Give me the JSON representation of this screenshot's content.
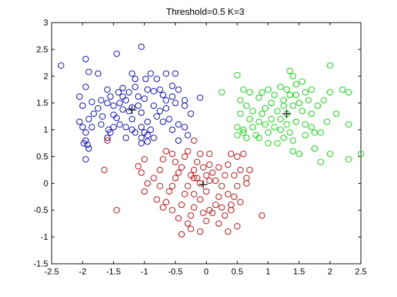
{
  "chart_data": {
    "type": "scatter",
    "title": "Threshold=0.5 K=3",
    "xlabel": "",
    "ylabel": "",
    "xlim": [
      -2.5,
      2.5
    ],
    "ylim": [
      -1.5,
      3
    ],
    "x_ticks": [
      "-2.5",
      "-2",
      "-1.5",
      "-1",
      "-0.5",
      "0",
      "0.5",
      "1",
      "1.5",
      "2",
      "2.5"
    ],
    "y_ticks": [
      "-1.5",
      "-1",
      "-0.5",
      "0",
      "0.5",
      "1",
      "1.5",
      "2",
      "2.5",
      "3"
    ],
    "grid": false,
    "marker": "circle-open",
    "series": [
      {
        "color": "#0000cc",
        "points": [
          [
            -2.35,
            2.2
          ],
          [
            -1.95,
            2.32
          ],
          [
            -1.9,
            2.08
          ],
          [
            -1.75,
            2.05
          ],
          [
            -1.45,
            2.42
          ],
          [
            -1.05,
            2.55
          ],
          [
            -1.95,
            1.8
          ],
          [
            -2.05,
            1.62
          ],
          [
            -2.0,
            1.45
          ],
          [
            -1.85,
            1.52
          ],
          [
            -1.7,
            1.55
          ],
          [
            -1.55,
            1.62
          ],
          [
            -1.42,
            1.7
          ],
          [
            -1.35,
            1.62
          ],
          [
            -1.3,
            1.55
          ],
          [
            -1.5,
            1.45
          ],
          [
            -1.6,
            1.5
          ],
          [
            -1.75,
            1.4
          ],
          [
            -1.68,
            1.25
          ],
          [
            -1.82,
            1.3
          ],
          [
            -1.9,
            1.2
          ],
          [
            -2.05,
            1.15
          ],
          [
            -2.0,
            1.05
          ],
          [
            -1.85,
            1.05
          ],
          [
            -1.95,
            0.8
          ],
          [
            -1.95,
            0.95
          ],
          [
            -1.98,
            0.75
          ],
          [
            -1.92,
            0.72
          ],
          [
            -1.9,
            0.65
          ],
          [
            -1.95,
            0.45
          ],
          [
            -1.5,
            1.28
          ],
          [
            -1.35,
            1.38
          ],
          [
            -1.25,
            1.35
          ],
          [
            -1.2,
            1.42
          ],
          [
            -1.1,
            1.45
          ],
          [
            -1.05,
            1.32
          ],
          [
            -1.45,
            1.22
          ],
          [
            -1.4,
            1.1
          ],
          [
            -1.5,
            1.05
          ],
          [
            -1.55,
            0.95
          ],
          [
            -1.58,
            1.0
          ],
          [
            -1.3,
            1.05
          ],
          [
            -1.2,
            1.0
          ],
          [
            -1.15,
            0.95
          ],
          [
            -1.05,
            1.05
          ],
          [
            -1.0,
            0.95
          ],
          [
            -0.95,
            1.15
          ],
          [
            -0.9,
            1.0
          ],
          [
            -0.95,
            0.9
          ],
          [
            -0.85,
            0.85
          ],
          [
            -1.05,
            0.85
          ],
          [
            -1.3,
            0.85
          ],
          [
            -1.7,
            1.1
          ],
          [
            -1.6,
            0.85
          ],
          [
            -1.4,
            1.5
          ],
          [
            -1.25,
            1.7
          ],
          [
            -1.15,
            1.8
          ],
          [
            -1.1,
            1.62
          ],
          [
            -1.0,
            1.58
          ],
          [
            -0.95,
            1.75
          ],
          [
            -0.85,
            1.72
          ],
          [
            -0.75,
            1.75
          ],
          [
            -0.7,
            1.65
          ],
          [
            -0.65,
            1.55
          ],
          [
            -0.55,
            1.62
          ],
          [
            -0.5,
            1.5
          ],
          [
            -0.65,
            1.4
          ],
          [
            -0.75,
            1.35
          ],
          [
            -0.85,
            1.45
          ],
          [
            -0.6,
            1.2
          ],
          [
            -0.7,
            1.15
          ],
          [
            -0.55,
            1.0
          ],
          [
            -0.45,
            1.1
          ],
          [
            -0.35,
            1.05
          ],
          [
            -0.45,
            0.8
          ],
          [
            -0.3,
            0.9
          ],
          [
            -0.25,
            1.3
          ],
          [
            -0.35,
            1.45
          ],
          [
            -1.2,
            2.05
          ],
          [
            -1.15,
            1.95
          ],
          [
            -0.98,
            1.95
          ],
          [
            -0.9,
            2.05
          ],
          [
            -0.8,
            1.95
          ],
          [
            -0.65,
            2.05
          ],
          [
            -0.5,
            2.05
          ],
          [
            -0.55,
            1.82
          ],
          [
            -0.45,
            1.75
          ],
          [
            -0.35,
            1.55
          ],
          [
            -0.1,
            1.6
          ],
          [
            -1.35,
            1.78
          ],
          [
            -1.6,
            1.75
          ],
          [
            -1.2,
            1.2
          ],
          [
            -0.8,
            1.25
          ],
          [
            -1.05,
            0.75
          ],
          [
            -0.95,
            0.78
          ]
        ]
      },
      {
        "color": "#cc0000",
        "points": [
          [
            -1.65,
            0.25
          ],
          [
            -1.6,
            0.8
          ],
          [
            -1.45,
            -0.5
          ],
          [
            -1.1,
            0.32
          ],
          [
            -1.0,
            0.45
          ],
          [
            -1.05,
            0.2
          ],
          [
            -0.95,
            0.0
          ],
          [
            -1.0,
            -0.15
          ],
          [
            -0.85,
            0.1
          ],
          [
            -0.75,
            -0.05
          ],
          [
            -0.75,
            0.25
          ],
          [
            -0.7,
            0.45
          ],
          [
            -0.65,
            0.6
          ],
          [
            -0.55,
            0.55
          ],
          [
            -0.5,
            0.4
          ],
          [
            -0.45,
            0.2
          ],
          [
            -0.4,
            0.3
          ],
          [
            -0.5,
            0.1
          ],
          [
            -0.55,
            -0.05
          ],
          [
            -0.6,
            -0.15
          ],
          [
            -0.65,
            -0.35
          ],
          [
            -0.55,
            -0.5
          ],
          [
            -0.4,
            -0.4
          ],
          [
            -0.35,
            -0.2
          ],
          [
            -0.3,
            -0.05
          ],
          [
            -0.25,
            0.15
          ],
          [
            -0.2,
            0.25
          ],
          [
            -0.15,
            0.4
          ],
          [
            -0.1,
            0.55
          ],
          [
            -0.05,
            0.3
          ],
          [
            0.0,
            0.15
          ],
          [
            0.05,
            0.05
          ],
          [
            0.0,
            -0.15
          ],
          [
            -0.1,
            -0.3
          ],
          [
            -0.2,
            -0.45
          ],
          [
            -0.25,
            -0.6
          ],
          [
            -0.3,
            -0.75
          ],
          [
            -0.25,
            -0.85
          ],
          [
            -0.4,
            -0.95
          ],
          [
            -0.1,
            -0.9
          ],
          [
            0.0,
            -0.7
          ],
          [
            0.05,
            -0.5
          ],
          [
            0.15,
            -0.4
          ],
          [
            0.2,
            -0.25
          ],
          [
            0.25,
            -0.05
          ],
          [
            0.3,
            0.15
          ],
          [
            0.35,
            0.35
          ],
          [
            0.1,
            0.2
          ],
          [
            0.15,
            0.05
          ],
          [
            0.2,
            0.3
          ],
          [
            0.4,
            0.55
          ],
          [
            0.5,
            0.5
          ],
          [
            0.6,
            0.55
          ],
          [
            0.45,
            0.15
          ],
          [
            0.55,
            0.25
          ],
          [
            0.7,
            0.25
          ],
          [
            0.65,
            0.1
          ],
          [
            0.5,
            -0.05
          ],
          [
            0.35,
            -0.2
          ],
          [
            0.4,
            -0.4
          ],
          [
            0.3,
            -0.6
          ],
          [
            0.2,
            -0.75
          ],
          [
            0.35,
            -0.9
          ],
          [
            0.5,
            -0.8
          ],
          [
            0.4,
            -0.5
          ],
          [
            0.55,
            -0.35
          ],
          [
            0.65,
            0.0
          ],
          [
            0.9,
            -0.6
          ],
          [
            -0.2,
            0.8
          ],
          [
            -0.3,
            0.6
          ],
          [
            -0.8,
            -0.3
          ],
          [
            -0.7,
            -0.45
          ],
          [
            -0.2,
            0.1
          ],
          [
            -0.1,
            0.0
          ],
          [
            -0.2,
            -0.2
          ],
          [
            -0.15,
            0.1
          ],
          [
            0.05,
            0.35
          ],
          [
            -0.35,
            0.5
          ],
          [
            -0.05,
            -0.55
          ],
          [
            0.1,
            -0.55
          ],
          [
            0.05,
            0.55
          ],
          [
            -0.45,
            -0.65
          ],
          [
            0.25,
            -0.45
          ],
          [
            0.45,
            -0.25
          ]
        ]
      },
      {
        "color": "#00dd00",
        "points": [
          [
            0.25,
            1.7
          ],
          [
            0.5,
            2.02
          ],
          [
            0.6,
            1.75
          ],
          [
            0.7,
            1.7
          ],
          [
            0.55,
            1.55
          ],
          [
            0.65,
            1.45
          ],
          [
            0.55,
            1.3
          ],
          [
            0.7,
            1.2
          ],
          [
            0.85,
            1.6
          ],
          [
            0.9,
            1.7
          ],
          [
            1.0,
            1.75
          ],
          [
            1.1,
            1.65
          ],
          [
            1.2,
            1.8
          ],
          [
            1.3,
            1.75
          ],
          [
            1.35,
            1.65
          ],
          [
            1.4,
            2.0
          ],
          [
            1.45,
            1.85
          ],
          [
            1.55,
            1.9
          ],
          [
            1.6,
            1.7
          ],
          [
            1.7,
            1.75
          ],
          [
            1.65,
            1.55
          ],
          [
            1.5,
            1.5
          ],
          [
            1.4,
            1.45
          ],
          [
            1.25,
            1.55
          ],
          [
            1.05,
            1.5
          ],
          [
            0.95,
            1.4
          ],
          [
            0.9,
            1.3
          ],
          [
            0.95,
            1.1
          ],
          [
            1.0,
            0.95
          ],
          [
            1.1,
            1.05
          ],
          [
            1.2,
            1.2
          ],
          [
            1.3,
            1.1
          ],
          [
            1.45,
            1.15
          ],
          [
            1.55,
            1.35
          ],
          [
            1.7,
            1.3
          ],
          [
            1.8,
            1.45
          ],
          [
            1.9,
            1.55
          ],
          [
            2.0,
            1.7
          ],
          [
            2.2,
            1.75
          ],
          [
            2.1,
            1.3
          ],
          [
            1.95,
            1.15
          ],
          [
            1.85,
            0.95
          ],
          [
            1.7,
            1.05
          ],
          [
            1.6,
            0.9
          ],
          [
            1.4,
            0.8
          ],
          [
            1.25,
            0.85
          ],
          [
            1.15,
            0.75
          ],
          [
            1.0,
            0.75
          ],
          [
            0.8,
            0.9
          ],
          [
            0.65,
            0.85
          ],
          [
            0.5,
            0.9
          ],
          [
            0.5,
            1.05
          ],
          [
            1.5,
            0.55
          ],
          [
            1.75,
            0.65
          ],
          [
            1.85,
            0.4
          ],
          [
            2.0,
            0.55
          ],
          [
            2.3,
            0.45
          ],
          [
            2.5,
            0.55
          ],
          [
            2.3,
            1.1
          ],
          [
            2.0,
            2.2
          ],
          [
            1.35,
            2.1
          ],
          [
            1.3,
            1.3
          ],
          [
            1.15,
            1.35
          ],
          [
            0.75,
            1.05
          ],
          [
            0.85,
            1.15
          ],
          [
            1.6,
            1.1
          ],
          [
            1.2,
            1.0
          ],
          [
            1.35,
            0.95
          ],
          [
            0.6,
            1.0
          ],
          [
            1.05,
            1.2
          ],
          [
            1.45,
            1.65
          ],
          [
            1.75,
            0.95
          ],
          [
            2.3,
            1.7
          ],
          [
            0.6,
            0.95
          ],
          [
            0.75,
            1.35
          ],
          [
            1.4,
            0.6
          ],
          [
            0.85,
            0.85
          ],
          [
            1.25,
            1.45
          ]
        ]
      }
    ],
    "centroids": [
      {
        "x": -1.2,
        "y": 1.37,
        "color": "#000000"
      },
      {
        "x": -0.05,
        "y": -0.02,
        "color": "#000000"
      },
      {
        "x": 1.3,
        "y": 1.3,
        "color": "#000000"
      }
    ]
  }
}
